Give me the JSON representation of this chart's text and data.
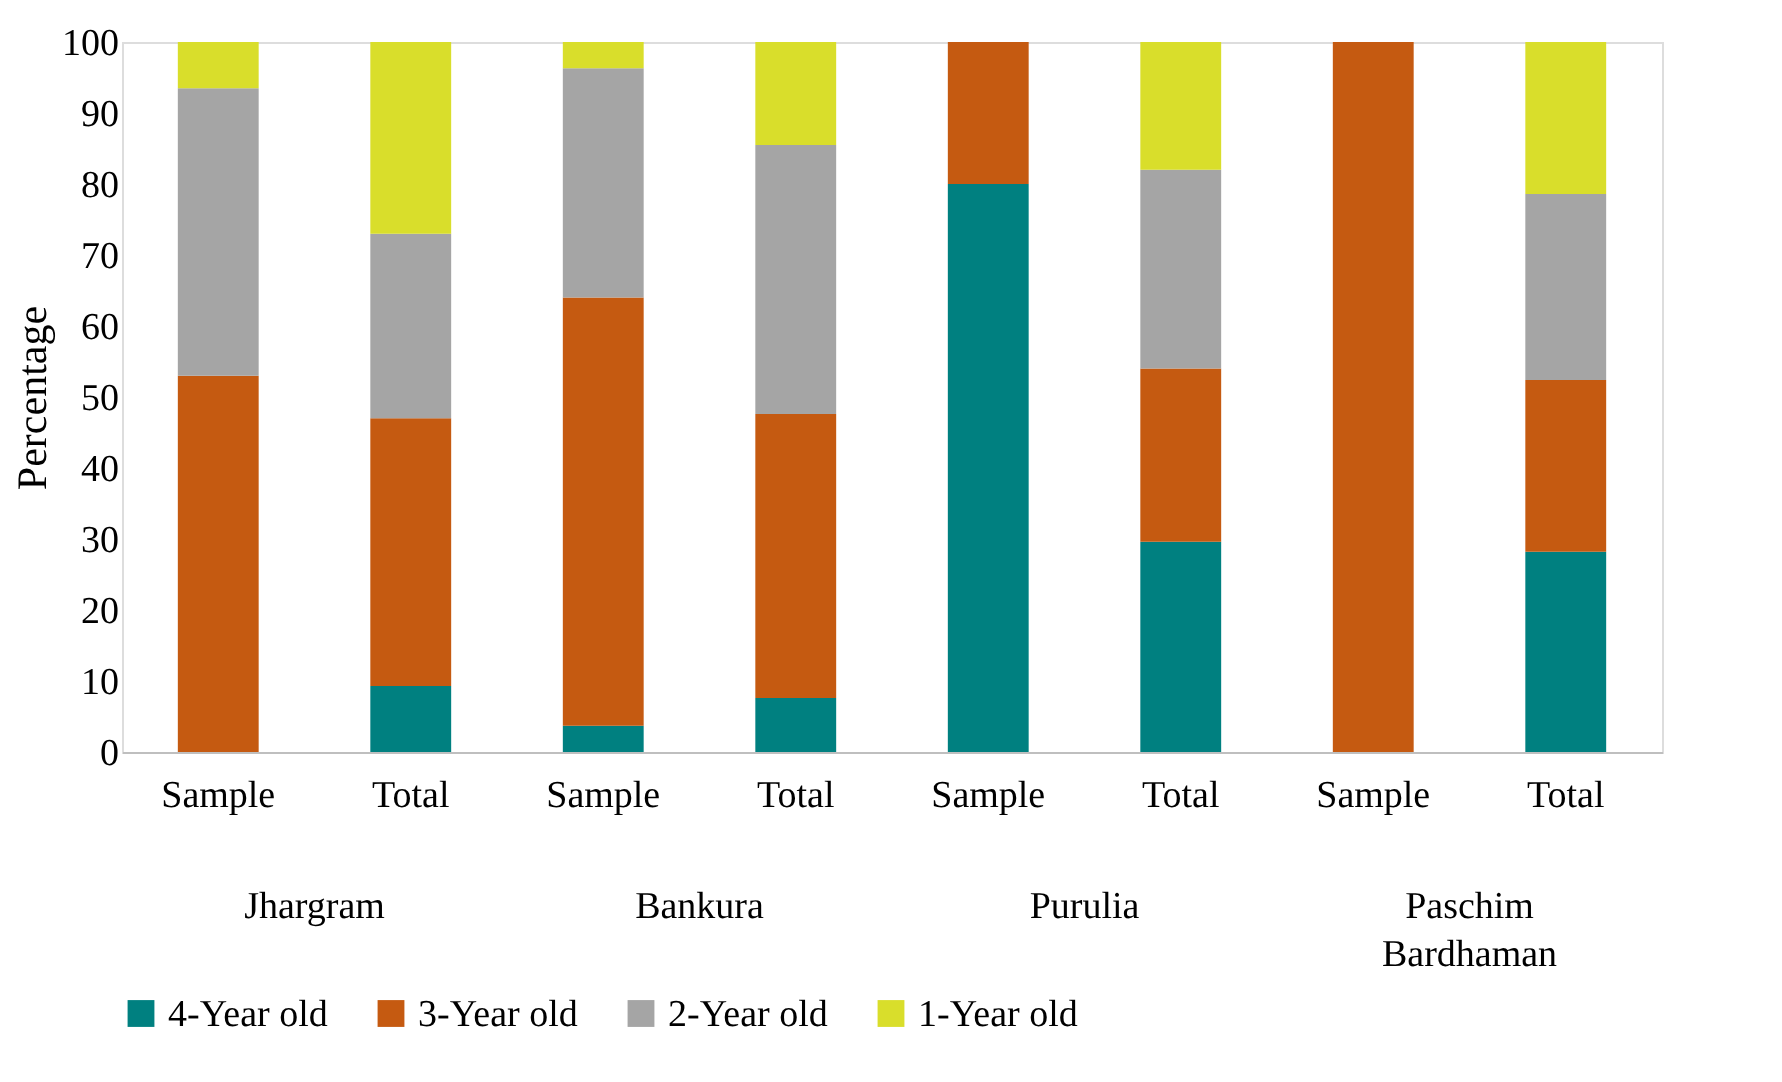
{
  "chart_data": {
    "type": "bar",
    "stacked": true,
    "ylabel": "Percentage",
    "categories": [
      "Sample",
      "Total",
      "Sample",
      "Total",
      "Sample",
      "Total",
      "Sample",
      "Total"
    ],
    "annotations": [
      "Jhargram",
      "Bankura",
      "Purulia",
      "Paschim Bardhaman"
    ],
    "series": [
      {
        "name": "4-Year old",
        "color": "#008080",
        "values": [
          0,
          9.3,
          3.7,
          7.6,
          80,
          29.6,
          0,
          28.2
        ]
      },
      {
        "name": "3-Year old",
        "color": "#c55a11",
        "values": [
          53,
          37.7,
          60.3,
          40,
          20,
          24.4,
          100,
          24.2
        ]
      },
      {
        "name": "2-Year old",
        "color": "#a5a5a5",
        "values": [
          40.5,
          26,
          32.3,
          37.9,
          0,
          28,
          0,
          26.2
        ]
      },
      {
        "name": "1-Year old",
        "color": "#d9de2b",
        "values": [
          6.5,
          27,
          3.7,
          14.5,
          0,
          18,
          0,
          21.4
        ]
      }
    ],
    "ylim": [
      0,
      100
    ],
    "yticks": [
      0,
      10,
      20,
      30,
      40,
      50,
      60,
      70,
      80,
      90,
      100
    ],
    "grid": false,
    "legend": "bottom"
  }
}
